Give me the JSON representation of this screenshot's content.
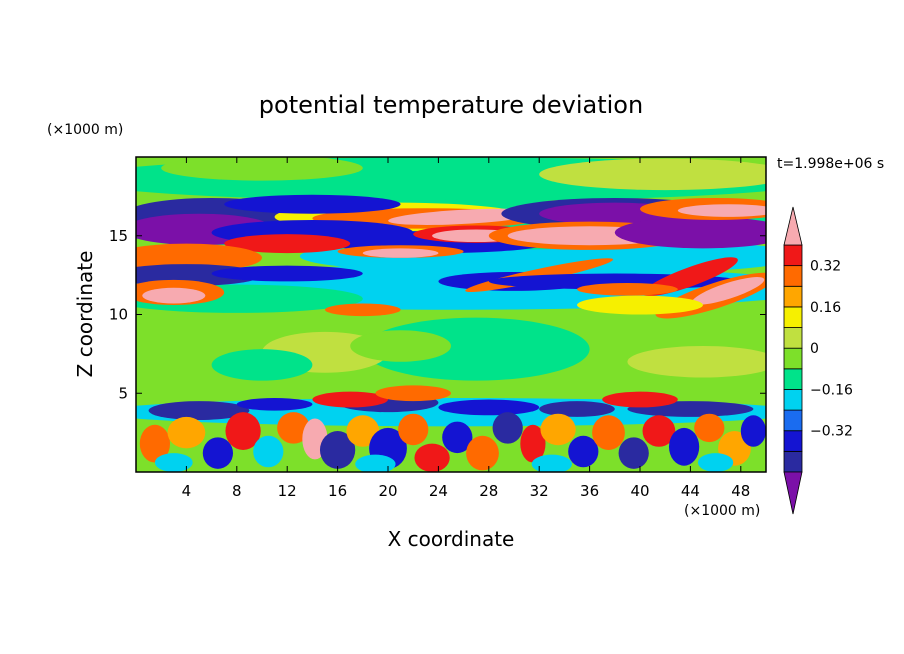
{
  "chart_data": {
    "type": "heatmap",
    "title": "potential temperature deviation",
    "xlabel": "X coordinate",
    "ylabel": "Z coordinate",
    "x_unit_label": "(×1000 m)",
    "y_unit_label": "(×1000 m)",
    "time_label": "t=1.998e+06 s",
    "xlim": [
      0,
      50
    ],
    "ylim": [
      0,
      20
    ],
    "x_ticks": [
      4,
      8,
      12,
      16,
      20,
      24,
      28,
      32,
      36,
      40,
      44,
      48
    ],
    "y_ticks": [
      5,
      10,
      15
    ],
    "x_tick_labels": [
      "4",
      "8",
      "12",
      "16",
      "20",
      "24",
      "28",
      "32",
      "36",
      "40",
      "44",
      "48"
    ],
    "y_tick_labels": [
      "5",
      "10",
      "15"
    ],
    "colorbar": {
      "levels": [
        -0.48,
        -0.4,
        -0.32,
        -0.24,
        -0.16,
        -0.08,
        0,
        0.08,
        0.16,
        0.24,
        0.32,
        0.4
      ],
      "colors": [
        "#7b10a8",
        "#2a2aa0",
        "#1414d2",
        "#1a6cf0",
        "#00d2f0",
        "#00e38a",
        "#7de02a",
        "#c0e040",
        "#f6f000",
        "#ffa600",
        "#ff6a00",
        "#f01818",
        "#f7aab0"
      ],
      "tick_values": [
        0.32,
        0.16,
        0,
        -0.16,
        -0.32
      ],
      "tick_labels": [
        "0.32",
        "0.16",
        "0",
        "−0.16",
        "−0.32"
      ],
      "extend": "both"
    },
    "background_level_color": "#7de02a",
    "features": [
      {
        "desc": "upper shear layer positive band",
        "level_color": "#f7aab0"
      },
      {
        "desc": "upper shear layer negative band",
        "level_color": "#2a2aa0"
      },
      {
        "desc": "boundary-layer convective cells",
        "level_color": "#ff6a00"
      }
    ]
  }
}
